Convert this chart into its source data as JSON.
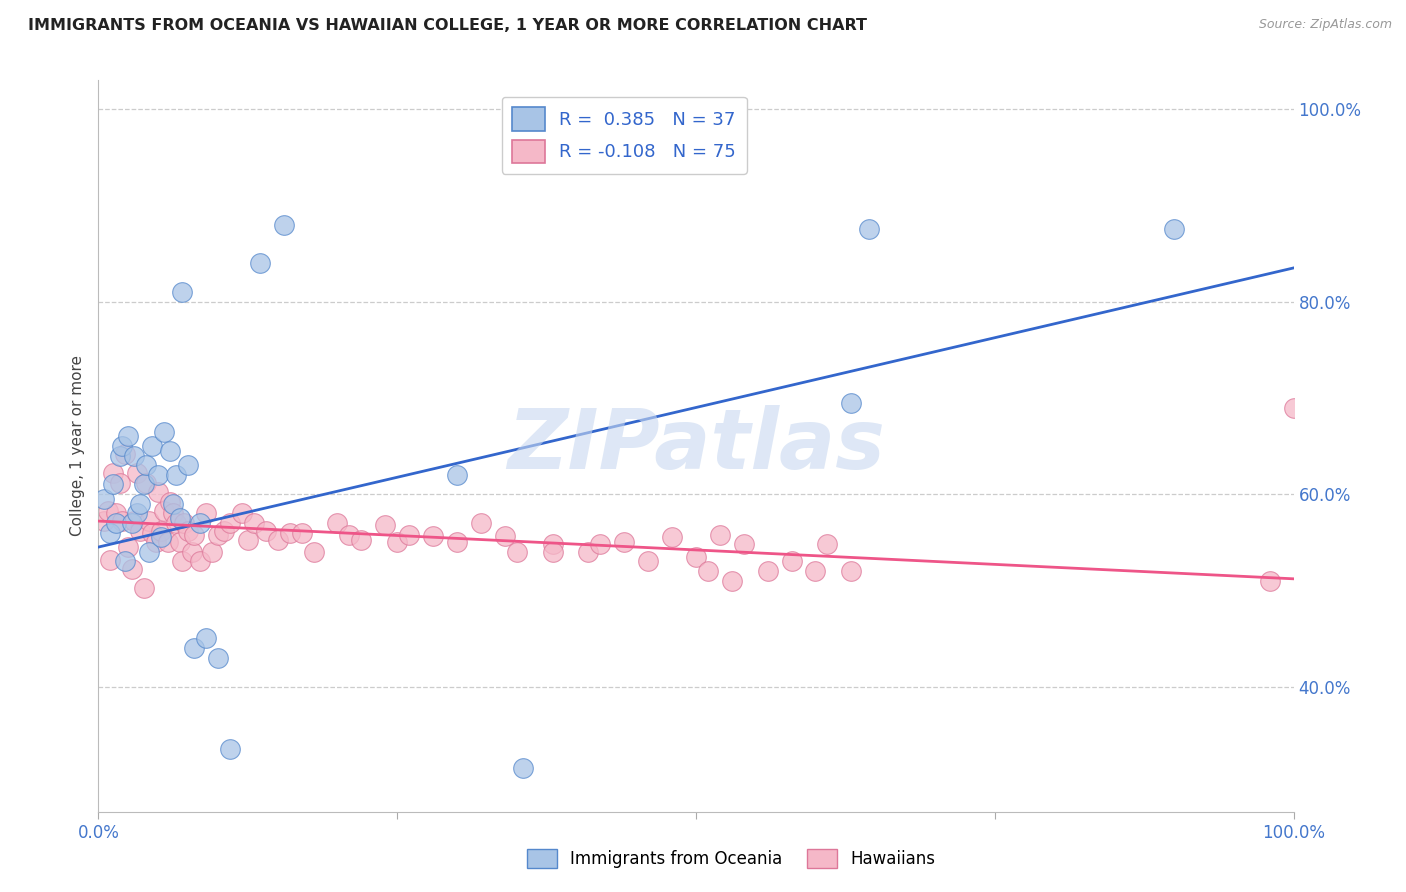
{
  "title": "IMMIGRANTS FROM OCEANIA VS HAWAIIAN COLLEGE, 1 YEAR OR MORE CORRELATION CHART",
  "source": "Source: ZipAtlas.com",
  "ylabel": "College, 1 year or more",
  "xlim": [
    0.0,
    1.0
  ],
  "ylim": [
    0.27,
    1.03
  ],
  "yticks": [
    0.4,
    0.6,
    0.8,
    1.0
  ],
  "ytick_labels": [
    "40.0%",
    "60.0%",
    "80.0%",
    "100.0%"
  ],
  "grid_color": "#cccccc",
  "background_color": "#ffffff",
  "watermark": "ZIPatlas",
  "r1": 0.385,
  "n1": 37,
  "r2": -0.108,
  "n2": 75,
  "series1_color": "#a8c4e6",
  "series1_edge": "#5588cc",
  "series2_color": "#f5b8c8",
  "series2_edge": "#dd7799",
  "line1_color": "#3366cc",
  "line2_color": "#ee5588",
  "legend_box_color1": "#a8c4e6",
  "legend_box_edge1": "#5588cc",
  "legend_box_color2": "#f5b8c8",
  "legend_box_edge2": "#dd7799",
  "blue_line_start": 0.545,
  "blue_line_end": 0.835,
  "pink_line_start": 0.572,
  "pink_line_end": 0.512,
  "scatter1_x": [
    0.005,
    0.01,
    0.012,
    0.015,
    0.018,
    0.02,
    0.022,
    0.025,
    0.028,
    0.03,
    0.032,
    0.035,
    0.038,
    0.04,
    0.042,
    0.045,
    0.05,
    0.052,
    0.055,
    0.06,
    0.062,
    0.065,
    0.068,
    0.07,
    0.075,
    0.08,
    0.085,
    0.09,
    0.1,
    0.11,
    0.135,
    0.3,
    0.355,
    0.63,
    0.645,
    0.9,
    0.155
  ],
  "scatter1_y": [
    0.595,
    0.56,
    0.61,
    0.57,
    0.64,
    0.65,
    0.53,
    0.66,
    0.57,
    0.64,
    0.58,
    0.59,
    0.61,
    0.63,
    0.54,
    0.65,
    0.62,
    0.555,
    0.665,
    0.645,
    0.59,
    0.62,
    0.575,
    0.81,
    0.63,
    0.44,
    0.57,
    0.45,
    0.43,
    0.335,
    0.84,
    0.62,
    0.315,
    0.695,
    0.875,
    0.875,
    0.88
  ],
  "scatter2_x": [
    0.005,
    0.008,
    0.01,
    0.012,
    0.015,
    0.018,
    0.02,
    0.022,
    0.025,
    0.028,
    0.03,
    0.032,
    0.035,
    0.038,
    0.04,
    0.042,
    0.045,
    0.048,
    0.05,
    0.052,
    0.055,
    0.058,
    0.06,
    0.062,
    0.065,
    0.068,
    0.07,
    0.072,
    0.075,
    0.078,
    0.08,
    0.085,
    0.09,
    0.095,
    0.1,
    0.105,
    0.11,
    0.12,
    0.125,
    0.13,
    0.14,
    0.15,
    0.16,
    0.17,
    0.18,
    0.2,
    0.21,
    0.22,
    0.24,
    0.25,
    0.26,
    0.28,
    0.3,
    0.32,
    0.35,
    0.38,
    0.41,
    0.44,
    0.46,
    0.48,
    0.52,
    0.54,
    0.56,
    0.58,
    0.6,
    0.61,
    0.63,
    0.34,
    0.38,
    0.42,
    0.5,
    0.51,
    0.53,
    0.98,
    1.0
  ],
  "scatter2_y": [
    0.572,
    0.582,
    0.532,
    0.622,
    0.58,
    0.612,
    0.572,
    0.642,
    0.545,
    0.522,
    0.572,
    0.622,
    0.562,
    0.502,
    0.612,
    0.572,
    0.56,
    0.55,
    0.602,
    0.562,
    0.582,
    0.55,
    0.592,
    0.58,
    0.57,
    0.55,
    0.53,
    0.57,
    0.562,
    0.54,
    0.558,
    0.53,
    0.58,
    0.54,
    0.558,
    0.562,
    0.57,
    0.58,
    0.552,
    0.57,
    0.562,
    0.552,
    0.56,
    0.56,
    0.54,
    0.57,
    0.558,
    0.552,
    0.568,
    0.55,
    0.558,
    0.556,
    0.55,
    0.57,
    0.54,
    0.548,
    0.54,
    0.55,
    0.53,
    0.555,
    0.558,
    0.548,
    0.52,
    0.53,
    0.52,
    0.548,
    0.52,
    0.556,
    0.54,
    0.548,
    0.535,
    0.52,
    0.51,
    0.51,
    0.69
  ],
  "footer_labels": [
    "Immigrants from Oceania",
    "Hawaiians"
  ]
}
